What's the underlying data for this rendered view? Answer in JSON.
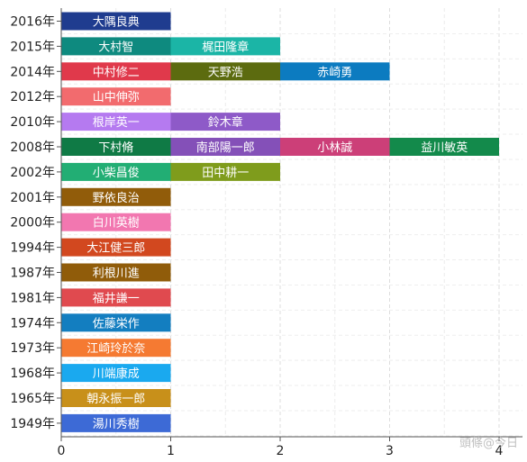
{
  "chart_data": {
    "type": "bar",
    "orientation": "horizontal",
    "stacked": true,
    "xlim": [
      0,
      4
    ],
    "x_ticks": [
      "0",
      "1",
      "2",
      "3",
      "4"
    ],
    "grid": true,
    "rows": [
      {
        "year": "2016年",
        "segments": [
          {
            "label": "大隅良典",
            "value": 1,
            "color": "#1f3c8f"
          }
        ]
      },
      {
        "year": "2015年",
        "segments": [
          {
            "label": "大村智",
            "value": 1,
            "color": "#0e8a7f"
          },
          {
            "label": "梶田隆章",
            "value": 1,
            "color": "#1bb5a6"
          }
        ]
      },
      {
        "year": "2014年",
        "segments": [
          {
            "label": "中村修二",
            "value": 1,
            "color": "#e0394b"
          },
          {
            "label": "天野浩",
            "value": 1,
            "color": "#5c6b0f"
          },
          {
            "label": "赤崎勇",
            "value": 1,
            "color": "#0c7bc0"
          }
        ]
      },
      {
        "year": "2012年",
        "segments": [
          {
            "label": "山中伸弥",
            "value": 1,
            "color": "#f26b6e"
          }
        ]
      },
      {
        "year": "2010年",
        "segments": [
          {
            "label": "根岸英一",
            "value": 1,
            "color": "#b57af0"
          },
          {
            "label": "鈴木章",
            "value": 1,
            "color": "#8e5ac8"
          }
        ]
      },
      {
        "year": "2008年",
        "segments": [
          {
            "label": "下村脩",
            "value": 1,
            "color": "#0f7a45"
          },
          {
            "label": "南部陽一郎",
            "value": 1,
            "color": "#8450b8"
          },
          {
            "label": "小林誠",
            "value": 1,
            "color": "#cc3f78"
          },
          {
            "label": "益川敏英",
            "value": 1,
            "color": "#138a4b"
          }
        ]
      },
      {
        "year": "2002年",
        "segments": [
          {
            "label": "小柴昌俊",
            "value": 1,
            "color": "#22ae74"
          },
          {
            "label": "田中耕一",
            "value": 1,
            "color": "#7f9c1c"
          }
        ]
      },
      {
        "year": "2001年",
        "segments": [
          {
            "label": "野依良治",
            "value": 1,
            "color": "#915c0a"
          }
        ]
      },
      {
        "year": "2000年",
        "segments": [
          {
            "label": "白川英樹",
            "value": 1,
            "color": "#f277b0"
          }
        ]
      },
      {
        "year": "1994年",
        "segments": [
          {
            "label": "大江健三郎",
            "value": 1,
            "color": "#d2481f"
          }
        ]
      },
      {
        "year": "1987年",
        "segments": [
          {
            "label": "利根川進",
            "value": 1,
            "color": "#905c0a"
          }
        ]
      },
      {
        "year": "1981年",
        "segments": [
          {
            "label": "福井謙一",
            "value": 1,
            "color": "#e04a4f"
          }
        ]
      },
      {
        "year": "1974年",
        "segments": [
          {
            "label": "佐藤栄作",
            "value": 1,
            "color": "#137ec0"
          }
        ]
      },
      {
        "year": "1973年",
        "segments": [
          {
            "label": "江崎玲於奈",
            "value": 1,
            "color": "#f57a32"
          }
        ]
      },
      {
        "year": "1968年",
        "segments": [
          {
            "label": "川端康成",
            "value": 1,
            "color": "#1aa9ef"
          }
        ]
      },
      {
        "year": "1965年",
        "segments": [
          {
            "label": "朝永振一郎",
            "value": 1,
            "color": "#c8901a"
          }
        ]
      },
      {
        "year": "1949年",
        "segments": [
          {
            "label": "湯川秀樹",
            "value": 1,
            "color": "#3d6ad6"
          }
        ]
      }
    ]
  },
  "watermark": "頭條@今日"
}
